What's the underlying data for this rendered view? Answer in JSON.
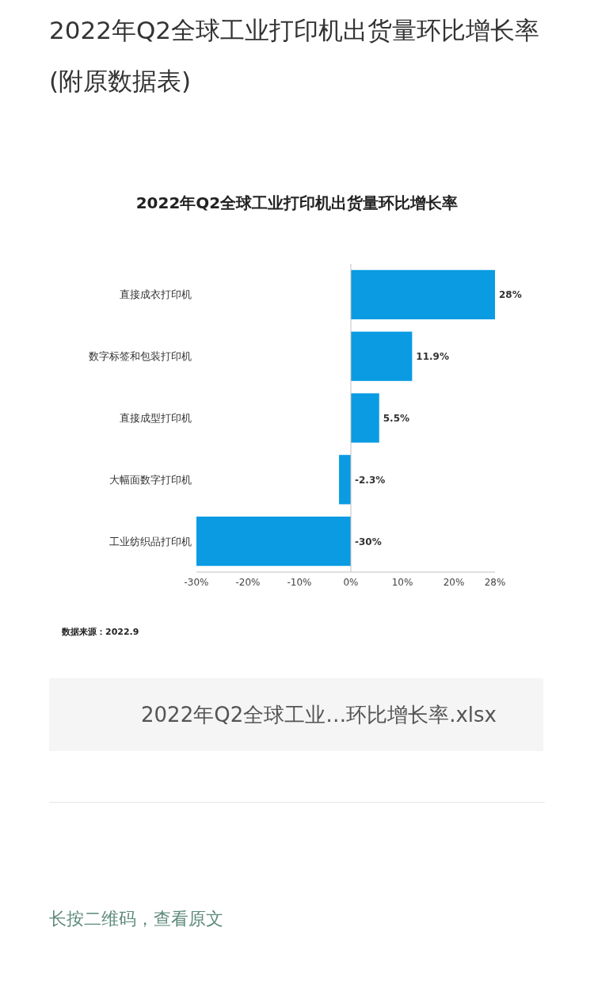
{
  "chart_data": {
    "type": "bar",
    "orientation": "horizontal",
    "title": "2022年Q2全球工业打印机出货量环比增长率",
    "categories": [
      "直接成衣打印机",
      "数字标签和包装打印机",
      "直接成型打印机",
      "大幅面数字打印机",
      "工业纺织品打印机"
    ],
    "values": [
      28,
      11.9,
      5.5,
      -2.3,
      -30
    ],
    "value_labels": [
      "28%",
      "11.9%",
      "5.5%",
      "-2.3%",
      "-30%"
    ],
    "color": "#0a9be3",
    "xlim": [
      -30,
      28
    ],
    "xticks": [
      {
        "value": -30,
        "label": "-30%"
      },
      {
        "value": -20,
        "label": "-20%"
      },
      {
        "value": -10,
        "label": "-10%"
      },
      {
        "value": 0,
        "label": "0%"
      },
      {
        "value": 10,
        "label": "10%"
      },
      {
        "value": 20,
        "label": "20%"
      },
      {
        "value": 28,
        "label": "28%"
      }
    ],
    "annotations": [
      "2022年Q2全球工业打印机出货量环比增长率 (附原数据表)",
      "数据来源：2022.9",
      "2022年Q2全球工业…环比增长率.xlsx",
      "长按二维码，查看原文"
    ]
  }
}
